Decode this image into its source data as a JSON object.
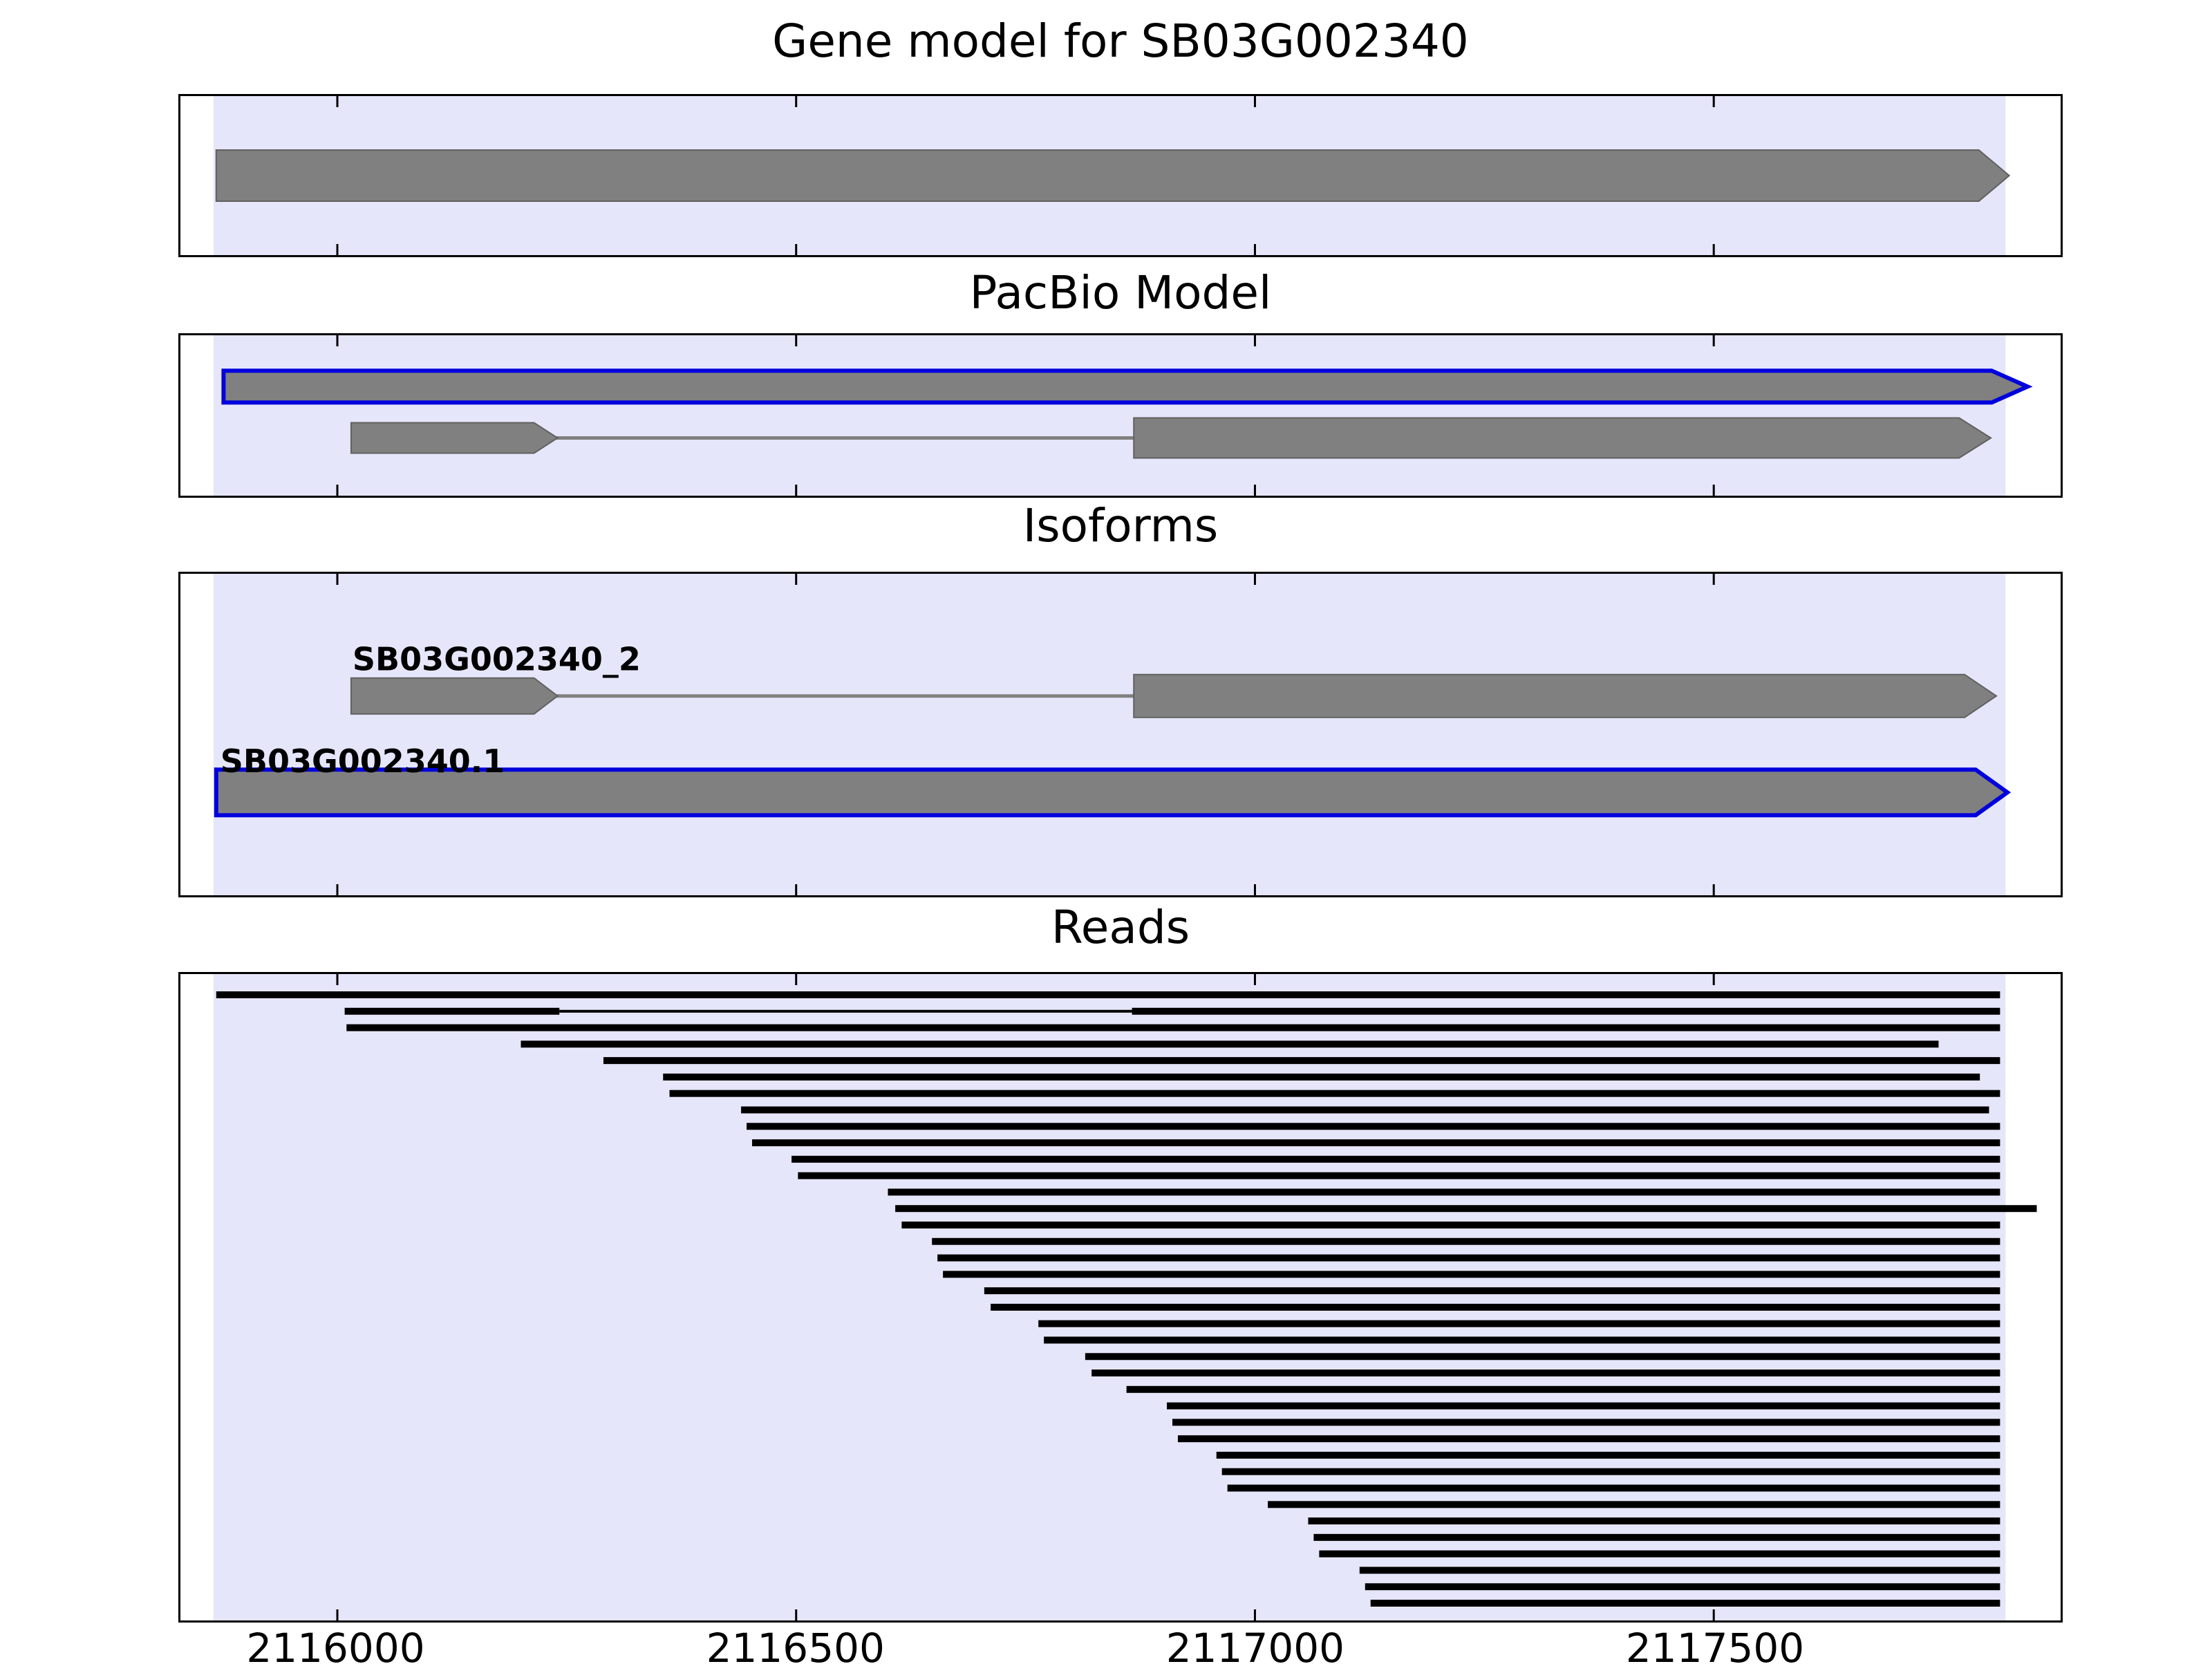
{
  "chart_data": {
    "type": "genome-track-plot",
    "x_axis": {
      "min": 2115829,
      "max": 2117878,
      "tick_values": [
        2116000,
        2116500,
        2117000,
        2117500
      ],
      "tick_labels": [
        "2116000",
        "2116500",
        "2117000",
        "2117500"
      ]
    },
    "highlight_region": {
      "start": 2115865,
      "end": 2117818,
      "color": "#e6e6fa"
    },
    "colors": {
      "feature_fill": "#808080",
      "feature_edge": "#606060",
      "selected_outline": "#0000dd",
      "read": "#000000"
    },
    "panels": [
      {
        "title": "Gene model for SB03G002340",
        "features": [
          {
            "type": "arrow",
            "start": 2115868,
            "end": 2117822
          }
        ]
      },
      {
        "title": "PacBio Model",
        "features": [
          {
            "type": "arrow",
            "start": 2115876,
            "end": 2117842,
            "outlined": true
          },
          {
            "type": "spliced",
            "exons": [
              [
                2116015,
                2116240
              ],
              [
                2116868,
                2117802
              ]
            ]
          }
        ]
      },
      {
        "title": "Isoforms",
        "features": [
          {
            "type": "spliced",
            "label": "SB03G002340_2",
            "exons": [
              [
                2116015,
                2116240
              ],
              [
                2116868,
                2117808
              ]
            ]
          },
          {
            "type": "arrow",
            "label": "SB03G002340.1",
            "start": 2115868,
            "end": 2117820,
            "outlined": true
          }
        ]
      },
      {
        "title": "Reads",
        "reads": [
          {
            "start": 2115868,
            "end": 2117812
          },
          {
            "start": 2116008,
            "end": 2117812,
            "gap": [
              2116242,
              2116866
            ]
          },
          {
            "start": 2116010,
            "end": 2117812
          },
          {
            "start": 2116200,
            "end": 2117745
          },
          {
            "start": 2116290,
            "end": 2117812
          },
          {
            "start": 2116355,
            "end": 2117790
          },
          {
            "start": 2116362,
            "end": 2117812
          },
          {
            "start": 2116440,
            "end": 2117800
          },
          {
            "start": 2116446,
            "end": 2117812
          },
          {
            "start": 2116452,
            "end": 2117812
          },
          {
            "start": 2116495,
            "end": 2117812
          },
          {
            "start": 2116502,
            "end": 2117812
          },
          {
            "start": 2116600,
            "end": 2117812
          },
          {
            "start": 2116608,
            "end": 2117852
          },
          {
            "start": 2116615,
            "end": 2117812
          },
          {
            "start": 2116648,
            "end": 2117812
          },
          {
            "start": 2116654,
            "end": 2117812
          },
          {
            "start": 2116660,
            "end": 2117812
          },
          {
            "start": 2116705,
            "end": 2117812
          },
          {
            "start": 2116712,
            "end": 2117812
          },
          {
            "start": 2116764,
            "end": 2117812
          },
          {
            "start": 2116770,
            "end": 2117812
          },
          {
            "start": 2116815,
            "end": 2117812
          },
          {
            "start": 2116822,
            "end": 2117812
          },
          {
            "start": 2116860,
            "end": 2117812
          },
          {
            "start": 2116904,
            "end": 2117812
          },
          {
            "start": 2116910,
            "end": 2117812
          },
          {
            "start": 2116916,
            "end": 2117812
          },
          {
            "start": 2116958,
            "end": 2117812
          },
          {
            "start": 2116964,
            "end": 2117812
          },
          {
            "start": 2116970,
            "end": 2117812
          },
          {
            "start": 2117014,
            "end": 2117812
          },
          {
            "start": 2117058,
            "end": 2117812
          },
          {
            "start": 2117064,
            "end": 2117812
          },
          {
            "start": 2117070,
            "end": 2117812
          },
          {
            "start": 2117114,
            "end": 2117812
          },
          {
            "start": 2117120,
            "end": 2117812
          },
          {
            "start": 2117126,
            "end": 2117812
          }
        ]
      }
    ]
  }
}
